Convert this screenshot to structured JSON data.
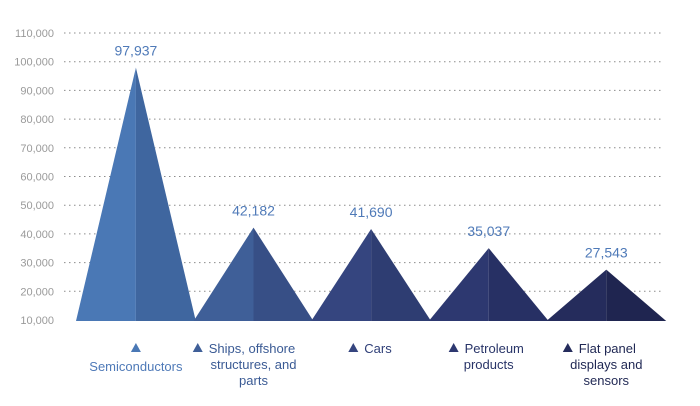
{
  "chart_data": {
    "type": "bar",
    "title": "",
    "xlabel": "",
    "ylabel": "",
    "ylim": [
      10000,
      110000
    ],
    "yticks": [
      "10,000",
      "20,000",
      "30,000",
      "40,000",
      "50,000",
      "60,000",
      "70,000",
      "80,000",
      "90,000",
      "100,000",
      "110,000"
    ],
    "grid": true,
    "categories": [
      "Semiconductors",
      "Ships, offshore structures, and parts",
      "Cars",
      "Petroleum products",
      "Flat panel displays and sensors"
    ],
    "category_label_lines": [
      [
        "Semiconductors"
      ],
      [
        "Ships, offshore",
        "structures, and",
        "parts"
      ],
      [
        "Cars"
      ],
      [
        "Petroleum",
        "products"
      ],
      [
        "Flat panel",
        "displays and",
        "sensors"
      ]
    ],
    "values": [
      97937,
      42182,
      41690,
      35037,
      27543
    ],
    "data_labels": [
      "97,937",
      "42,182",
      "41,690",
      "35,037",
      "27,543"
    ],
    "colors": [
      {
        "left": "#4a78b5",
        "right": "#3f669f",
        "legend_text": "#4f7ab8"
      },
      {
        "left": "#3f5f98",
        "right": "#374f86",
        "legend_text": "#3a5a94"
      },
      {
        "left": "#35457f",
        "right": "#2e3d72",
        "legend_text": "#2f3f78"
      },
      {
        "left": "#2d3870",
        "right": "#273064",
        "legend_text": "#283468"
      },
      {
        "left": "#252c5c",
        "right": "#1f2550",
        "legend_text": "#1f2753"
      }
    ],
    "label_color": "#4f7ab8",
    "legend_marker": "triangle"
  }
}
